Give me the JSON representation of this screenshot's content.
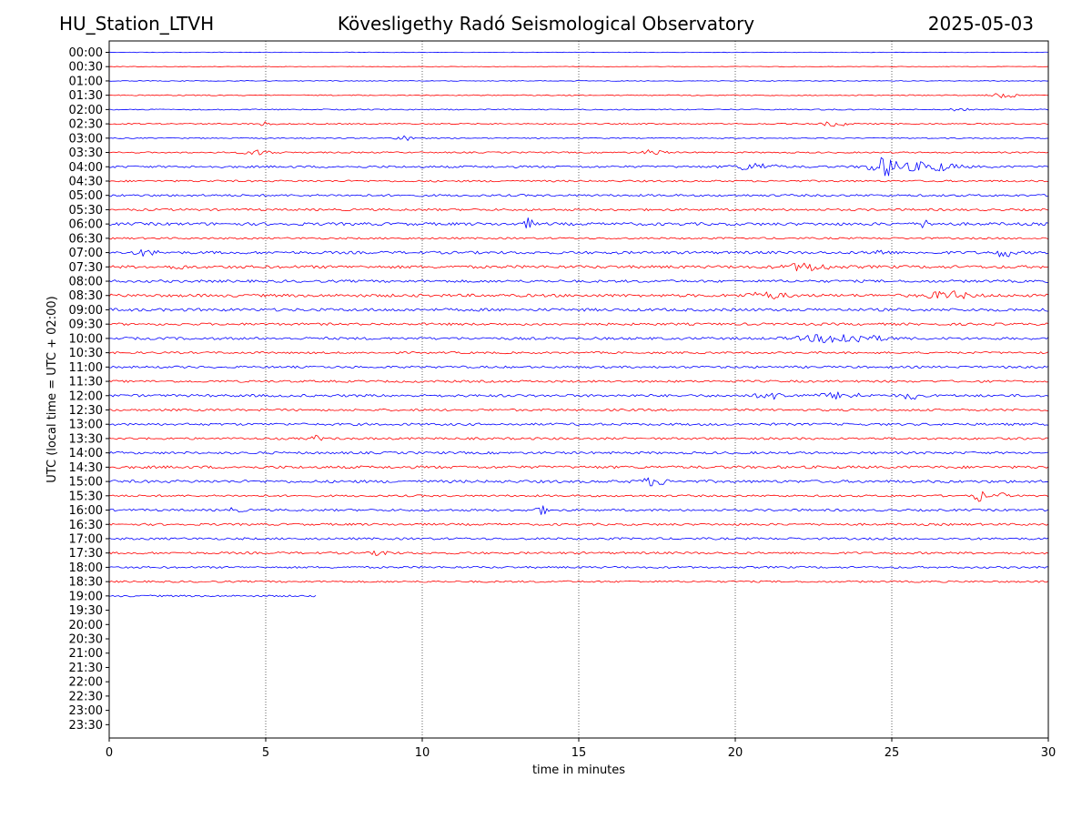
{
  "header": {
    "station": "HU_Station_LTVH",
    "observatory": "Kövesligethy Radó Seismological Observatory",
    "date": "2025-05-03"
  },
  "chart_data": {
    "type": "line",
    "subtype": "helicorder",
    "xlabel": "time in minutes",
    "ylabel": "UTC (local time = UTC + 02:00)",
    "xlim": [
      0,
      30
    ],
    "x_ticks": [
      0,
      5,
      10,
      15,
      20,
      25,
      30
    ],
    "vertical_gridlines": [
      5,
      10,
      15,
      20,
      25
    ],
    "row_labels": [
      "00:00",
      "00:30",
      "01:00",
      "01:30",
      "02:00",
      "02:30",
      "03:00",
      "03:30",
      "04:00",
      "04:30",
      "05:00",
      "05:30",
      "06:00",
      "06:30",
      "07:00",
      "07:30",
      "08:00",
      "08:30",
      "09:00",
      "09:30",
      "10:00",
      "10:30",
      "11:00",
      "11:30",
      "12:00",
      "12:30",
      "13:00",
      "13:30",
      "14:00",
      "14:30",
      "15:00",
      "15:30",
      "16:00",
      "16:30",
      "17:00",
      "17:30",
      "18:00",
      "18:30",
      "19:00",
      "19:30",
      "20:00",
      "20:30",
      "21:00",
      "21:30",
      "22:00",
      "22:30",
      "23:00",
      "23:30"
    ],
    "trace_colors": [
      "#0000ff",
      "#ff0000"
    ],
    "last_trace": {
      "row": "19:00",
      "end_minute": 6.6
    },
    "noise_level": [
      0.3,
      0.3,
      0.4,
      0.6,
      0.6,
      0.7,
      0.6,
      0.8,
      1.2,
      1.0,
      1.2,
      1.2,
      1.6,
      1.0,
      1.5,
      1.6,
      1.4,
      1.6,
      1.6,
      1.3,
      1.4,
      1.1,
      1.2,
      1.2,
      1.4,
      1.2,
      1.3,
      1.2,
      1.3,
      1.5,
      1.5,
      1.1,
      1.2,
      1.2,
      1.2,
      1.2,
      1.1,
      1.0,
      1.0
    ],
    "events": [
      {
        "row": "01:30",
        "minute": 28.6,
        "amplitude": 2.5,
        "width": 0.5
      },
      {
        "row": "02:00",
        "minute": 27.2,
        "amplitude": 2.5,
        "width": 0.3
      },
      {
        "row": "02:30",
        "minute": 5.0,
        "amplitude": 2,
        "width": 0.3
      },
      {
        "row": "02:30",
        "minute": 23.2,
        "amplitude": 2.5,
        "width": 0.5
      },
      {
        "row": "03:00",
        "minute": 9.5,
        "amplitude": 2.5,
        "width": 0.4
      },
      {
        "row": "03:30",
        "minute": 4.8,
        "amplitude": 2.5,
        "width": 0.6
      },
      {
        "row": "03:30",
        "minute": 17.4,
        "amplitude": 3,
        "width": 0.4
      },
      {
        "row": "04:00",
        "minute": 20.6,
        "amplitude": 3.5,
        "width": 0.8
      },
      {
        "row": "04:00",
        "minute": 24.8,
        "amplitude": 10,
        "width": 0.6
      },
      {
        "row": "04:00",
        "minute": 26.2,
        "amplitude": 5,
        "width": 1.0
      },
      {
        "row": "06:00",
        "minute": 13.4,
        "amplitude": 6,
        "width": 0.15
      },
      {
        "row": "06:00",
        "minute": 26.1,
        "amplitude": 5,
        "width": 0.2
      },
      {
        "row": "07:00",
        "minute": 1.2,
        "amplitude": 3,
        "width": 0.4
      },
      {
        "row": "07:00",
        "minute": 24.6,
        "amplitude": 3,
        "width": 0.3
      },
      {
        "row": "07:00",
        "minute": 28.6,
        "amplitude": 5,
        "width": 0.3
      },
      {
        "row": "07:30",
        "minute": 2.2,
        "amplitude": 3,
        "width": 0.2
      },
      {
        "row": "07:30",
        "minute": 22.3,
        "amplitude": 4,
        "width": 0.8
      },
      {
        "row": "08:30",
        "minute": 21.0,
        "amplitude": 3,
        "width": 0.8
      },
      {
        "row": "08:30",
        "minute": 26.8,
        "amplitude": 4,
        "width": 0.8
      },
      {
        "row": "10:00",
        "minute": 23.4,
        "amplitude": 5,
        "width": 1.4
      },
      {
        "row": "12:00",
        "minute": 21.2,
        "amplitude": 3,
        "width": 0.6
      },
      {
        "row": "12:00",
        "minute": 23.4,
        "amplitude": 3,
        "width": 0.8
      },
      {
        "row": "12:00",
        "minute": 25.6,
        "amplitude": 4,
        "width": 0.3
      },
      {
        "row": "13:30",
        "minute": 6.6,
        "amplitude": 3,
        "width": 0.2
      },
      {
        "row": "15:00",
        "minute": 17.4,
        "amplitude": 4,
        "width": 0.5
      },
      {
        "row": "15:30",
        "minute": 27.8,
        "amplitude": 6,
        "width": 0.2
      },
      {
        "row": "15:30",
        "minute": 28.5,
        "amplitude": 3,
        "width": 0.2
      },
      {
        "row": "16:00",
        "minute": 13.8,
        "amplitude": 4,
        "width": 0.3
      },
      {
        "row": "16:00",
        "minute": 4.0,
        "amplitude": 2,
        "width": 0.3
      },
      {
        "row": "17:30",
        "minute": 8.7,
        "amplitude": 3,
        "width": 0.3
      }
    ]
  }
}
